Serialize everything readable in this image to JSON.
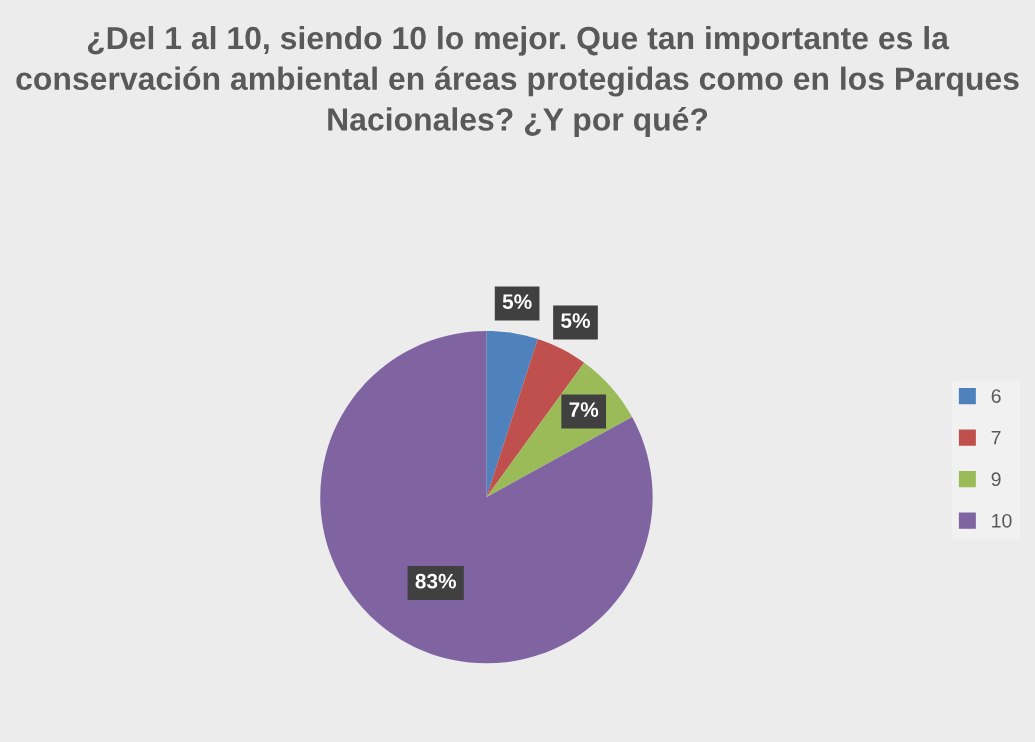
{
  "chart_data": {
    "type": "pie",
    "title": "¿Del 1 al 10, siendo 10 lo mejor. Que tan importante es la conservación ambiental en áreas protegidas como en los Parques Nacionales? ¿Y por qué?",
    "categories": [
      "6",
      "7",
      "9",
      "10"
    ],
    "values": [
      5,
      5,
      7,
      83
    ],
    "colors": [
      "#4f81bd",
      "#c0504d",
      "#9bbb59",
      "#8064a2"
    ],
    "value_labels": [
      "5%",
      "5%",
      "7%",
      "83%"
    ],
    "legend": "right"
  }
}
